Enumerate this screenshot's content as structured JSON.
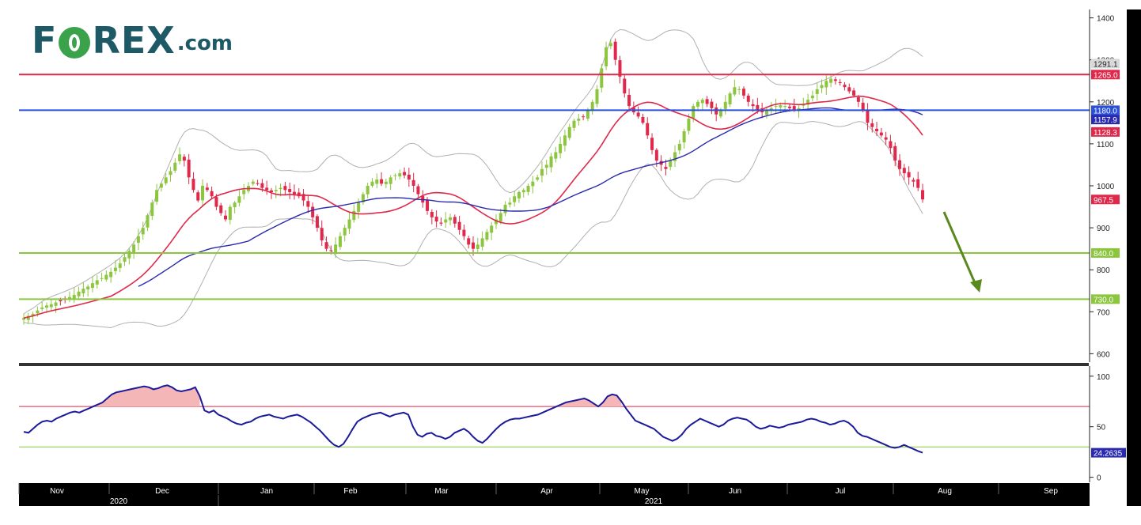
{
  "logo": {
    "part1": "F",
    "part2": "REX",
    "suffix": ".com"
  },
  "chart_data": [
    {
      "type": "candlestick",
      "title": "",
      "ylim": [
        580,
        1420
      ],
      "y_ticks": [
        600,
        700,
        800,
        900,
        1000,
        1100,
        1200,
        1300,
        1400
      ],
      "x_month_labels": [
        "Nov",
        "Dec",
        "Jan",
        "Feb",
        "Mar",
        "Apr",
        "May",
        "Jun",
        "Jul",
        "Aug",
        "Sep"
      ],
      "x_year_labels": [
        "2020",
        "2021"
      ],
      "horizontal_levels": [
        {
          "value": 1265.0,
          "label": "1265.0",
          "color": "#e0284a"
        },
        {
          "value": 1180.0,
          "label": "1180.0",
          "color": "#2a50d8"
        },
        {
          "value": 840.0,
          "label": "840.0",
          "color": "#8cc63f"
        },
        {
          "value": 730.0,
          "label": "730.0",
          "color": "#8cc63f"
        }
      ],
      "last_value_tags": [
        {
          "value": 1291.1,
          "label": "1291.1",
          "color": "#d8d8d8",
          "text_color": "#222222"
        },
        {
          "value": 1157.9,
          "label": "1157.9",
          "color": "#2a2ab0",
          "text_color": "#ffffff"
        },
        {
          "value": 1128.3,
          "label": "1128.3",
          "color": "#e0284a",
          "text_color": "#ffffff"
        },
        {
          "value": 967.5,
          "label": "967.5",
          "color": "#e0284a",
          "text_color": "#ffffff"
        }
      ],
      "close_series": [
        685,
        690,
        695,
        703,
        710,
        715,
        718,
        722,
        725,
        730,
        735,
        740,
        748,
        755,
        760,
        768,
        775,
        780,
        788,
        795,
        805,
        815,
        830,
        845,
        860,
        880,
        900,
        930,
        960,
        990,
        1005,
        1020,
        1035,
        1055,
        1075,
        1060,
        1020,
        990,
        965,
        1000,
        990,
        975,
        950,
        935,
        920,
        950,
        960,
        975,
        990,
        1000,
        1010,
        1005,
        995,
        990,
        985,
        990,
        995,
        990,
        985,
        980,
        975,
        965,
        950,
        925,
        900,
        870,
        850,
        845,
        860,
        880,
        900,
        920,
        940,
        960,
        980,
        1000,
        1010,
        1015,
        1005,
        1010,
        1020,
        1025,
        1030,
        1025,
        1015,
        1000,
        980,
        960,
        940,
        925,
        915,
        910,
        920,
        925,
        910,
        895,
        880,
        860,
        850,
        860,
        875,
        890,
        905,
        920,
        935,
        955,
        960,
        975,
        985,
        990,
        1000,
        1010,
        1020,
        1040,
        1050,
        1070,
        1080,
        1100,
        1120,
        1140,
        1155,
        1160,
        1165,
        1180,
        1200,
        1230,
        1280,
        1330,
        1340,
        1300,
        1260,
        1220,
        1190,
        1175,
        1165,
        1150,
        1120,
        1085,
        1060,
        1050,
        1040,
        1060,
        1080,
        1100,
        1130,
        1160,
        1190,
        1200,
        1205,
        1195,
        1185,
        1170,
        1180,
        1200,
        1220,
        1235,
        1230,
        1215,
        1200,
        1190,
        1180,
        1175,
        1180,
        1185,
        1190,
        1192,
        1190,
        1185,
        1180,
        1185,
        1195,
        1205,
        1215,
        1230,
        1240,
        1250,
        1255,
        1250,
        1245,
        1235,
        1225,
        1215,
        1200,
        1180,
        1150,
        1140,
        1130,
        1120,
        1110,
        1090,
        1060,
        1040,
        1030,
        1020,
        1010,
        995,
        967.5
      ],
      "series": [
        {
          "name": "",
          "role": "20-period moving average",
          "color": "#e0284a"
        },
        {
          "name": "",
          "role": "50-period moving average",
          "color": "#2a2ab0"
        },
        {
          "name": "",
          "role": "Bollinger bands",
          "color": "#b0b0b0"
        }
      ],
      "annotation": {
        "type": "arrow",
        "direction": "down",
        "color": "#5a8a1e"
      }
    },
    {
      "type": "line",
      "title": "",
      "ylim": [
        -5,
        110
      ],
      "y_ticks": [
        0,
        50,
        100
      ],
      "overbought_level": 70,
      "oversold_level": 30,
      "last_value_tag": {
        "value": 24.2635,
        "label": "24.2635",
        "color": "#2a2ab0",
        "text_color": "#ffffff"
      },
      "series": [
        {
          "name": "",
          "color": "#1a1a9a",
          "values": [
            45,
            44,
            48,
            52,
            55,
            56,
            55,
            58,
            60,
            62,
            64,
            65,
            64,
            66,
            68,
            70,
            72,
            74,
            78,
            82,
            84,
            85,
            86,
            87,
            88,
            89,
            90,
            89,
            87,
            88,
            90,
            91,
            89,
            86,
            85,
            86,
            87,
            89,
            80,
            66,
            64,
            66,
            62,
            60,
            58,
            55,
            53,
            52,
            54,
            55,
            58,
            60,
            61,
            62,
            60,
            59,
            58,
            60,
            61,
            62,
            60,
            57,
            54,
            50,
            46,
            41,
            36,
            32,
            30,
            33,
            40,
            48,
            55,
            58,
            60,
            62,
            63,
            64,
            62,
            60,
            62,
            63,
            64,
            62,
            50,
            42,
            40,
            43,
            44,
            41,
            40,
            38,
            40,
            44,
            46,
            48,
            45,
            40,
            36,
            34,
            38,
            43,
            48,
            52,
            55,
            57,
            58,
            58,
            59,
            60,
            61,
            62,
            64,
            66,
            68,
            70,
            72,
            74,
            75,
            76,
            77,
            78,
            76,
            73,
            70,
            74,
            80,
            82,
            81,
            75,
            68,
            62,
            56,
            54,
            52,
            50,
            48,
            44,
            40,
            38,
            36,
            38,
            42,
            48,
            52,
            55,
            58,
            56,
            54,
            52,
            50,
            52,
            56,
            58,
            59,
            58,
            57,
            54,
            50,
            48,
            49,
            51,
            50,
            49,
            50,
            52,
            53,
            54,
            55,
            57,
            58,
            57,
            55,
            54,
            52,
            53,
            55,
            56,
            54,
            50,
            44,
            41,
            40,
            38,
            36,
            34,
            32,
            30,
            29,
            30,
            32,
            30,
            28,
            26,
            24.2635
          ]
        }
      ]
    }
  ]
}
